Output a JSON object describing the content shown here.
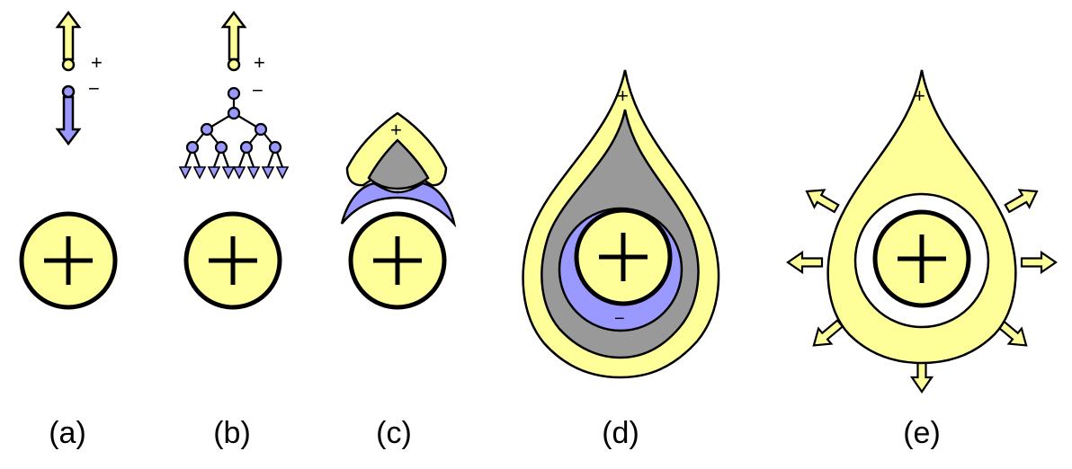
{
  "colors": {
    "positive": "#ffff99",
    "negative": "#9999ff",
    "neutral": "#999999",
    "outline": "#000000",
    "background": "#ffffff"
  },
  "symbols": {
    "plus": "+",
    "minus": "−"
  },
  "panels": [
    {
      "id": "a",
      "label": "(a)"
    },
    {
      "id": "b",
      "label": "(b)"
    },
    {
      "id": "c",
      "label": "(c)"
    },
    {
      "id": "d",
      "label": "(d)"
    },
    {
      "id": "e",
      "label": "(e)"
    }
  ]
}
